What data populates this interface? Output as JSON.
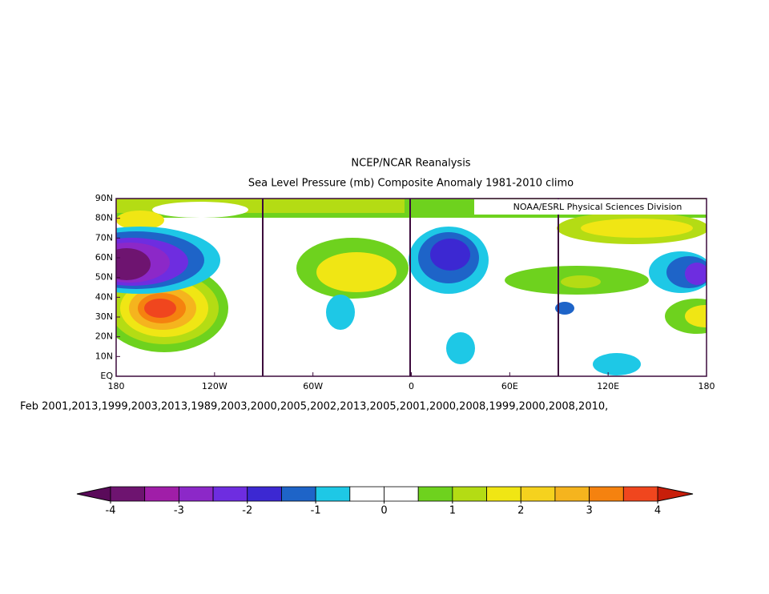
{
  "chart_data": {
    "type": "map",
    "title": "NCEP/NCAR Reanalysis",
    "subtitle": "Sea Level Pressure (mb) Composite Anomaly 1981-2010 climo",
    "credit": "NOAA/ESRL Physical Sciences Division",
    "composite_label": "Feb 2001,2013,1999,2003,2013,1989,2003,2000,2005,2002,2013,2005,2001,2000,2008,1999,2000,2008,2010,",
    "xlim": [
      -180,
      180
    ],
    "ylim": [
      0,
      90
    ],
    "xticks": [
      {
        "value": -180,
        "label": "180"
      },
      {
        "value": -120,
        "label": "120W"
      },
      {
        "value": -60,
        "label": "60W"
      },
      0,
      {
        "value": 60,
        "label": "60E"
      },
      {
        "value": 120,
        "label": "120E"
      },
      {
        "value": 180,
        "label": "180"
      }
    ],
    "yticks": [
      {
        "value": 0,
        "label": "EQ"
      },
      {
        "value": 10,
        "label": "10N"
      },
      {
        "value": 20,
        "label": "20N"
      },
      {
        "value": 30,
        "label": "30N"
      },
      {
        "value": 40,
        "label": "40N"
      },
      {
        "value": 50,
        "label": "50N"
      },
      {
        "value": 60,
        "label": "60N"
      },
      {
        "value": 70,
        "label": "70N"
      },
      {
        "value": 80,
        "label": "80N"
      },
      {
        "value": 90,
        "label": "90N"
      }
    ],
    "colorbar": {
      "ticks": [
        -4,
        -3,
        -2,
        -1,
        0,
        1,
        2,
        3,
        4
      ],
      "under_color": "#5a0a5a",
      "over_color": "#c81e0a",
      "colors": [
        "#6e1470",
        "#a01ea8",
        "#8c28c8",
        "#6e2de0",
        "#3c28d2",
        "#1e64c8",
        "#1ec8e6",
        "#ffffff",
        "#ffffff",
        "#6ed21e",
        "#b4dc14",
        "#f0e614",
        "#f5d21e",
        "#f5b41e",
        "#f5820f",
        "#f0461e"
      ]
    }
  }
}
